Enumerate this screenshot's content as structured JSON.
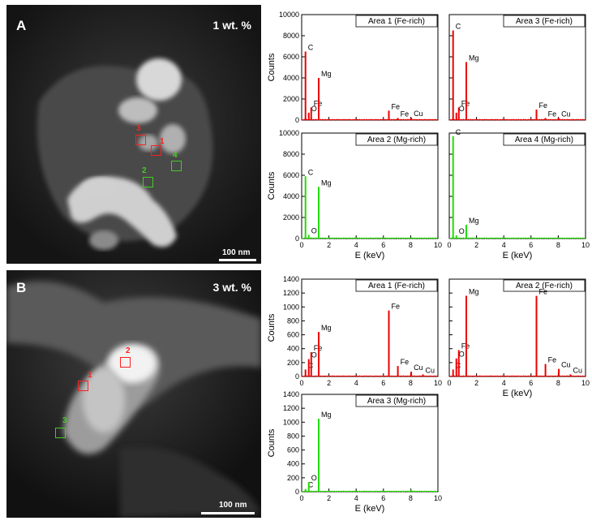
{
  "panels": {
    "A": {
      "letter": "A",
      "concentration": "1 wt. %",
      "scale_bar": "100 nm",
      "markers": [
        {
          "label": "1",
          "color": "#ff2020"
        },
        {
          "label": "2",
          "color": "#44cc22"
        },
        {
          "label": "3",
          "color": "#ff2020"
        },
        {
          "label": "4",
          "color": "#44cc22"
        }
      ]
    },
    "B": {
      "letter": "B",
      "concentration": "3 wt. %",
      "scale_bar": "100 nm",
      "markers": [
        {
          "label": "1",
          "color": "#ff2020"
        },
        {
          "label": "2",
          "color": "#ff2020"
        },
        {
          "label": "3",
          "color": "#44cc22"
        }
      ]
    }
  },
  "colors": {
    "fe_rich": "#ee0000",
    "mg_rich": "#22dd00"
  },
  "chart_data": [
    {
      "type": "line",
      "id": "A-area1",
      "title": "Area 1 (Fe-rich)",
      "xlabel": "E (keV)",
      "ylabel": "Counts",
      "xlim": [
        0,
        10
      ],
      "ylim": [
        0,
        10000
      ],
      "xticks": [
        "0",
        "2",
        "4",
        "6",
        "8",
        "10"
      ],
      "yticks": [
        "0",
        "2000",
        "4000",
        "6000",
        "8000",
        "10000"
      ],
      "show_xlabel": false,
      "show_ylabel": true,
      "show_xticks": false,
      "show_yticks": true,
      "color": "#ee0000",
      "peaks": [
        {
          "x": 0.28,
          "y": 6500,
          "label": "C"
        },
        {
          "x": 0.52,
          "y": 700,
          "label": "O"
        },
        {
          "x": 0.7,
          "y": 1200,
          "label": "Fe"
        },
        {
          "x": 1.25,
          "y": 4000,
          "label": "Mg"
        },
        {
          "x": 6.4,
          "y": 900,
          "label": "Fe"
        },
        {
          "x": 7.06,
          "y": 200,
          "label": "Fe"
        },
        {
          "x": 8.04,
          "y": 250,
          "label": "Cu"
        }
      ]
    },
    {
      "type": "line",
      "id": "A-area3",
      "title": "Area 3 (Fe-rich)",
      "xlabel": "E (keV)",
      "ylabel": "Counts",
      "xlim": [
        0,
        10
      ],
      "ylim": [
        0,
        10000
      ],
      "xticks": [
        "0",
        "2",
        "4",
        "6",
        "8",
        "10"
      ],
      "yticks": [
        "0",
        "2000",
        "4000",
        "6000",
        "8000",
        "10000"
      ],
      "show_xlabel": false,
      "show_ylabel": false,
      "show_xticks": false,
      "show_yticks": false,
      "color": "#ee0000",
      "peaks": [
        {
          "x": 0.28,
          "y": 8500,
          "label": "C"
        },
        {
          "x": 0.52,
          "y": 700,
          "label": "O"
        },
        {
          "x": 0.7,
          "y": 1200,
          "label": "Fe"
        },
        {
          "x": 1.25,
          "y": 5500,
          "label": "Mg"
        },
        {
          "x": 6.4,
          "y": 1000,
          "label": "Fe"
        },
        {
          "x": 7.06,
          "y": 200,
          "label": "Fe"
        },
        {
          "x": 8.04,
          "y": 200,
          "label": "Cu"
        }
      ]
    },
    {
      "type": "line",
      "id": "A-area2",
      "title": "Area 2  (Mg-rich)",
      "xlabel": "E (keV)",
      "ylabel": "Counts",
      "xlim": [
        0,
        10
      ],
      "ylim": [
        0,
        10000
      ],
      "xticks": [
        "0",
        "2",
        "4",
        "6",
        "8",
        "10"
      ],
      "yticks": [
        "0",
        "2000",
        "4000",
        "6000",
        "8000",
        "10000"
      ],
      "show_xlabel": true,
      "show_ylabel": true,
      "show_xticks": true,
      "show_yticks": true,
      "color": "#22dd00",
      "peaks": [
        {
          "x": 0.28,
          "y": 5900,
          "label": "C"
        },
        {
          "x": 0.52,
          "y": 350,
          "label": "O"
        },
        {
          "x": 1.25,
          "y": 4900,
          "label": "Mg"
        },
        {
          "x": 8.04,
          "y": 100,
          "label": ""
        }
      ]
    },
    {
      "type": "line",
      "id": "A-area4",
      "title": "Area 4 (Mg-rich)",
      "xlabel": "E (keV)",
      "ylabel": "Counts",
      "xlim": [
        0,
        10
      ],
      "ylim": [
        0,
        10000
      ],
      "xticks": [
        "0",
        "2",
        "4",
        "6",
        "8",
        "10"
      ],
      "yticks": [
        "0",
        "2000",
        "4000",
        "6000",
        "8000",
        "10000"
      ],
      "show_xlabel": true,
      "show_ylabel": false,
      "show_xticks": true,
      "show_yticks": false,
      "color": "#22dd00",
      "peaks": [
        {
          "x": 0.28,
          "y": 9700,
          "label": "C"
        },
        {
          "x": 0.52,
          "y": 300,
          "label": "O"
        },
        {
          "x": 1.25,
          "y": 1300,
          "label": "Mg"
        },
        {
          "x": 8.04,
          "y": 80,
          "label": ""
        }
      ]
    },
    {
      "type": "line",
      "id": "B-area1",
      "title": "Area 1 (Fe-rich)",
      "xlabel": "E (keV)",
      "ylabel": "Counts",
      "xlim": [
        0,
        10
      ],
      "ylim": [
        0,
        1400
      ],
      "xticks": [
        "0",
        "2",
        "4",
        "6",
        "8",
        "10"
      ],
      "yticks": [
        "0",
        "200",
        "400",
        "600",
        "800",
        "1000",
        "1200",
        "1400"
      ],
      "show_xlabel": false,
      "show_ylabel": true,
      "show_xticks": true,
      "show_yticks": true,
      "color": "#ee0000",
      "peaks": [
        {
          "x": 0.28,
          "y": 100,
          "label": "C"
        },
        {
          "x": 0.52,
          "y": 250,
          "label": "O"
        },
        {
          "x": 0.7,
          "y": 350,
          "label": "Fe"
        },
        {
          "x": 1.25,
          "y": 640,
          "label": "Mg"
        },
        {
          "x": 6.4,
          "y": 950,
          "label": "Fe"
        },
        {
          "x": 7.06,
          "y": 150,
          "label": "Fe"
        },
        {
          "x": 8.04,
          "y": 70,
          "label": "Cu"
        },
        {
          "x": 8.9,
          "y": 30,
          "label": "Cu"
        }
      ]
    },
    {
      "type": "line",
      "id": "B-area2",
      "title": "Area 2 (Fe-rich)",
      "xlabel": "E (keV)",
      "ylabel": "Counts",
      "xlim": [
        0,
        10
      ],
      "ylim": [
        0,
        1400
      ],
      "xticks": [
        "0",
        "2",
        "4",
        "6",
        "8",
        "10"
      ],
      "yticks": [
        "0",
        "200",
        "400",
        "600",
        "800",
        "1000",
        "1200",
        "1400"
      ],
      "show_xlabel": true,
      "show_ylabel": false,
      "show_xticks": true,
      "show_yticks": false,
      "color": "#ee0000",
      "peaks": [
        {
          "x": 0.28,
          "y": 100,
          "label": "C"
        },
        {
          "x": 0.52,
          "y": 260,
          "label": "O"
        },
        {
          "x": 0.7,
          "y": 380,
          "label": "Fe"
        },
        {
          "x": 1.25,
          "y": 1160,
          "label": "Mg"
        },
        {
          "x": 6.4,
          "y": 1160,
          "label": "Fe"
        },
        {
          "x": 7.06,
          "y": 180,
          "label": "Fe"
        },
        {
          "x": 8.04,
          "y": 110,
          "label": "Cu"
        },
        {
          "x": 8.9,
          "y": 30,
          "label": "Cu"
        }
      ]
    },
    {
      "type": "line",
      "id": "B-area3",
      "title": "Area 3 (Mg-rich)",
      "xlabel": "E (keV)",
      "ylabel": "Counts",
      "xlim": [
        0,
        10
      ],
      "ylim": [
        0,
        1400
      ],
      "xticks": [
        "0",
        "2",
        "4",
        "6",
        "8",
        "10"
      ],
      "yticks": [
        "0",
        "200",
        "400",
        "600",
        "800",
        "1000",
        "1200",
        "1400"
      ],
      "show_xlabel": true,
      "show_ylabel": true,
      "show_xticks": true,
      "show_yticks": true,
      "color": "#22dd00",
      "peaks": [
        {
          "x": 0.28,
          "y": 40,
          "label": "C"
        },
        {
          "x": 0.52,
          "y": 140,
          "label": "O"
        },
        {
          "x": 1.25,
          "y": 1050,
          "label": "Mg"
        },
        {
          "x": 8.04,
          "y": 30,
          "label": ""
        }
      ]
    }
  ]
}
